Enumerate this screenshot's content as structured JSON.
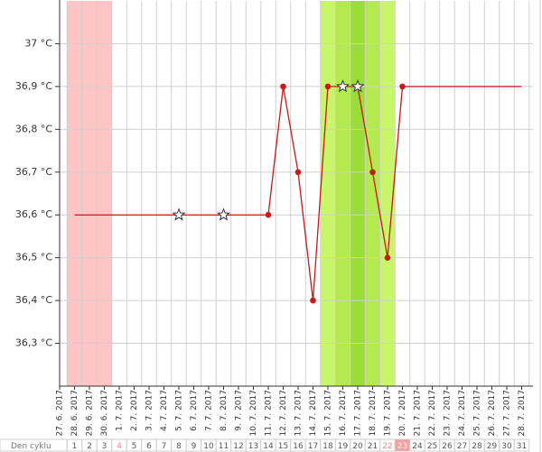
{
  "chart_data": {
    "type": "line",
    "x": [
      "27. 6. 2017",
      "28. 6. 2017",
      "29. 6. 2017",
      "30. 6. 2017",
      "1. 7. 2017",
      "2. 7. 2017",
      "3. 7. 2017",
      "4. 7. 2017",
      "5. 7. 2017",
      "6. 7. 2017",
      "7. 7. 2017",
      "8. 7. 2017",
      "9. 7. 2017",
      "10. 7. 2017",
      "11. 7. 2017",
      "12. 7. 2017",
      "13. 7. 2017",
      "14. 7. 2017",
      "15. 7. 2017",
      "16. 7. 2017",
      "17. 7. 2017",
      "18. 7. 2017",
      "19. 7. 2017",
      "20. 7. 2017",
      "21. 7. 2017",
      "22. 7. 2017",
      "23. 7. 2017",
      "24. 7. 2017",
      "25. 7. 2017",
      "26. 7. 2017",
      "27. 7. 2017",
      "28. 7. 2017"
    ],
    "series": [
      {
        "color": "#c41a1a",
        "values": [
          null,
          36.6,
          36.6,
          36.6,
          36.6,
          36.6,
          36.6,
          36.6,
          36.6,
          36.6,
          36.6,
          36.6,
          36.6,
          36.6,
          36.6,
          36.9,
          36.7,
          36.4,
          36.9,
          36.9,
          36.9,
          36.7,
          36.5,
          36.9,
          36.9,
          36.9,
          36.9,
          36.9,
          36.9,
          36.9,
          36.9,
          36.9
        ],
        "markers": [
          "none",
          "none",
          "none",
          "none",
          "none",
          "none",
          "none",
          "none",
          "star",
          "none",
          "none",
          "star",
          "none",
          "none",
          "dot",
          "dot",
          "dot",
          "dot",
          "dot",
          "star",
          "star",
          "dot",
          "dot",
          "dot",
          "none",
          "none",
          "none",
          "none",
          "none",
          "none",
          "none",
          "none"
        ]
      }
    ],
    "ylim": [
      36.2,
      37.1
    ],
    "yticks": [
      {
        "value": 36.3,
        "label": "36,3 °C"
      },
      {
        "value": 36.4,
        "label": "36,4 °C"
      },
      {
        "value": 36.5,
        "label": "36,5 °C"
      },
      {
        "value": 36.6,
        "label": "36,6 °C"
      },
      {
        "value": 36.7,
        "label": "36,7 °C"
      },
      {
        "value": 36.8,
        "label": "36,8 °C"
      },
      {
        "value": 36.9,
        "label": "36,9 °C"
      },
      {
        "value": 37,
        "label": "37 °C"
      }
    ],
    "grid": true,
    "bands": [
      {
        "from": 1,
        "to": 3,
        "color": "#ffc4c4"
      },
      {
        "from": 18,
        "to": 22,
        "color": "#c8f56a"
      },
      {
        "from": 19,
        "to": 21,
        "color": "#b4ea4e"
      },
      {
        "from": 20,
        "to": 20,
        "color": "#9bdb3a"
      }
    ],
    "cycle_label": "Den cyklu",
    "cycle_days": [
      1,
      2,
      3,
      4,
      5,
      6,
      7,
      8,
      9,
      10,
      11,
      12,
      13,
      14,
      15,
      16,
      17,
      18,
      19,
      20,
      21,
      22,
      23,
      24,
      25,
      26,
      27,
      28,
      29,
      30,
      31
    ],
    "cycle_text_highlight": [
      3,
      21
    ],
    "cycle_fill_highlight": [
      22
    ]
  }
}
